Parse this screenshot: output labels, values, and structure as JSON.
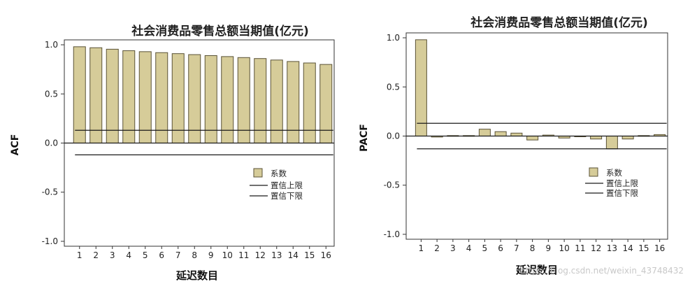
{
  "chart_data": [
    {
      "type": "bar",
      "title": "社会消费品零售总额当期值(亿元)",
      "ylabel": "ACF",
      "xlabel": "延迟数目",
      "categories": [
        "1",
        "2",
        "3",
        "4",
        "5",
        "6",
        "7",
        "8",
        "9",
        "10",
        "11",
        "12",
        "13",
        "14",
        "15",
        "16"
      ],
      "yticks": [
        "1.0",
        "0.5",
        "0.0",
        "-0.5",
        "-1.0"
      ],
      "ylim": [
        -1.05,
        1.05
      ],
      "series": [
        {
          "name": "系数",
          "values": [
            0.98,
            0.97,
            0.955,
            0.94,
            0.93,
            0.92,
            0.91,
            0.9,
            0.89,
            0.88,
            0.87,
            0.86,
            0.845,
            0.83,
            0.815,
            0.8
          ]
        }
      ],
      "confidence": {
        "upper": 0.13,
        "lower": -0.12,
        "upper_label": "置信上限",
        "lower_label": "置信下限"
      },
      "legend": {
        "placement": "right",
        "items": [
          "系数",
          "置信上限",
          "置信下限"
        ]
      },
      "grid": false
    },
    {
      "type": "bar",
      "title": "社会消费品零售总额当期值(亿元)",
      "ylabel": "PACF",
      "xlabel": "延迟数目",
      "categories": [
        "1",
        "2",
        "3",
        "4",
        "5",
        "6",
        "7",
        "8",
        "9",
        "10",
        "11",
        "12",
        "13",
        "14",
        "15",
        "16"
      ],
      "yticks": [
        "1.0",
        "0.5",
        "0.0",
        "-0.5",
        "-1.0"
      ],
      "ylim": [
        -1.05,
        1.05
      ],
      "series": [
        {
          "name": "系数",
          "values": [
            0.98,
            -0.01,
            0.005,
            0.005,
            0.07,
            0.045,
            0.03,
            -0.04,
            0.01,
            -0.02,
            0.0,
            -0.03,
            -0.13,
            -0.03,
            0.005,
            0.015
          ]
        }
      ],
      "confidence": {
        "upper": 0.13,
        "lower": -0.13,
        "upper_label": "置信上限",
        "lower_label": "置信下限"
      },
      "legend": {
        "placement": "right",
        "items": [
          "系数",
          "置信上限",
          "置信下限"
        ]
      },
      "grid": false
    }
  ],
  "watermark": "https://blog.csdn.net/weixin_43748432",
  "colors": {
    "bar_fill": "#d6cc99",
    "bar_stroke": "#5a5236",
    "line": "#1a1a1a"
  }
}
